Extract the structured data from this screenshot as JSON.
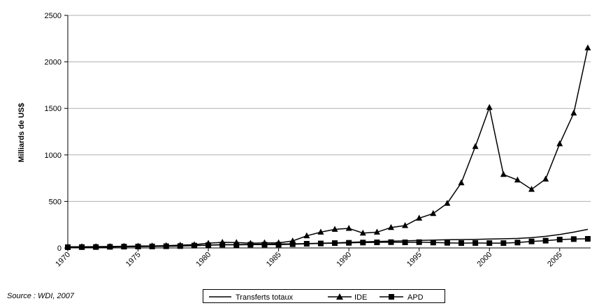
{
  "chart_data": {
    "type": "line",
    "ylabel": "Milliards de US$",
    "source": "Source : WDI, 2007",
    "ylim": [
      0,
      2500
    ],
    "xlim": [
      1970,
      2007
    ],
    "yticks": [
      "0",
      "500",
      "1000",
      "1500",
      "2000",
      "2500"
    ],
    "xticks": [
      "1970",
      "1975",
      "1980",
      "1985",
      "1990",
      "1995",
      "2000",
      "2005"
    ],
    "legend_position": "bottom",
    "x": [
      1970,
      1971,
      1972,
      1973,
      1974,
      1975,
      1976,
      1977,
      1978,
      1979,
      1980,
      1981,
      1982,
      1983,
      1984,
      1985,
      1986,
      1987,
      1988,
      1989,
      1990,
      1991,
      1992,
      1993,
      1994,
      1995,
      1996,
      1997,
      1998,
      1999,
      2000,
      2001,
      2002,
      2003,
      2004,
      2005,
      2006,
      2007
    ],
    "series": [
      {
        "name": "Transferts totaux",
        "marker": "none",
        "values": [
          5,
          7,
          8,
          10,
          12,
          15,
          17,
          20,
          23,
          27,
          30,
          33,
          35,
          38,
          40,
          42,
          44,
          47,
          50,
          55,
          60,
          65,
          70,
          73,
          76,
          80,
          84,
          88,
          90,
          92,
          95,
          98,
          102,
          110,
          125,
          145,
          170,
          200
        ]
      },
      {
        "name": "IDE",
        "marker": "triangle",
        "values": [
          12,
          13,
          14,
          16,
          18,
          20,
          22,
          25,
          30,
          35,
          50,
          60,
          58,
          50,
          55,
          55,
          75,
          130,
          170,
          200,
          210,
          160,
          170,
          220,
          240,
          320,
          370,
          480,
          700,
          1090,
          1510,
          790,
          730,
          630,
          740,
          1120,
          1450,
          2150
        ]
      },
      {
        "name": "APD",
        "marker": "square",
        "values": [
          8,
          9,
          10,
          12,
          14,
          15,
          16,
          18,
          20,
          25,
          30,
          35,
          33,
          35,
          35,
          35,
          40,
          45,
          48,
          52,
          55,
          58,
          60,
          62,
          60,
          62,
          58,
          55,
          52,
          53,
          52,
          52,
          58,
          70,
          78,
          90,
          95,
          98
        ]
      }
    ]
  }
}
